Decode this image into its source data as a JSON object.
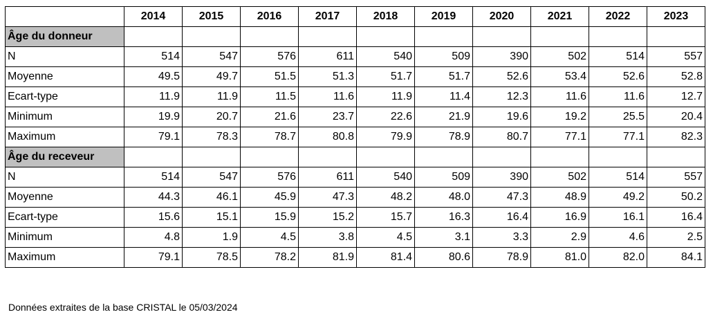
{
  "years": [
    "2014",
    "2015",
    "2016",
    "2017",
    "2018",
    "2019",
    "2020",
    "2021",
    "2022",
    "2023"
  ],
  "sections": [
    {
      "title": "Âge du donneur",
      "rows": [
        {
          "label": "N",
          "values": [
            "514",
            "547",
            "576",
            "611",
            "540",
            "509",
            "390",
            "502",
            "514",
            "557"
          ]
        },
        {
          "label": "Moyenne",
          "values": [
            "49.5",
            "49.7",
            "51.5",
            "51.3",
            "51.7",
            "51.7",
            "52.6",
            "53.4",
            "52.6",
            "52.8"
          ]
        },
        {
          "label": "Ecart-type",
          "values": [
            "11.9",
            "11.9",
            "11.5",
            "11.6",
            "11.9",
            "11.4",
            "12.3",
            "11.6",
            "11.6",
            "12.7"
          ]
        },
        {
          "label": "Minimum",
          "values": [
            "19.9",
            "20.7",
            "21.6",
            "23.7",
            "22.6",
            "21.9",
            "19.6",
            "19.2",
            "25.5",
            "20.4"
          ]
        },
        {
          "label": "Maximum",
          "values": [
            "79.1",
            "78.3",
            "78.7",
            "80.8",
            "79.9",
            "78.9",
            "80.7",
            "77.1",
            "77.1",
            "82.3"
          ]
        }
      ]
    },
    {
      "title": "Âge du receveur",
      "rows": [
        {
          "label": "N",
          "values": [
            "514",
            "547",
            "576",
            "611",
            "540",
            "509",
            "390",
            "502",
            "514",
            "557"
          ]
        },
        {
          "label": "Moyenne",
          "values": [
            "44.3",
            "46.1",
            "45.9",
            "47.3",
            "48.2",
            "48.0",
            "47.3",
            "48.9",
            "49.2",
            "50.2"
          ]
        },
        {
          "label": "Ecart-type",
          "values": [
            "15.6",
            "15.1",
            "15.9",
            "15.2",
            "15.7",
            "16.3",
            "16.4",
            "16.9",
            "16.1",
            "16.4"
          ]
        },
        {
          "label": "Minimum",
          "values": [
            "4.8",
            "1.9",
            "4.5",
            "3.8",
            "4.5",
            "3.1",
            "3.3",
            "2.9",
            "4.6",
            "2.5"
          ]
        },
        {
          "label": "Maximum",
          "values": [
            "79.1",
            "78.5",
            "78.2",
            "81.9",
            "81.4",
            "80.6",
            "78.9",
            "81.0",
            "82.0",
            "84.1"
          ]
        }
      ]
    }
  ],
  "footnote": "Données extraites de la base CRISTAL le 05/03/2024"
}
